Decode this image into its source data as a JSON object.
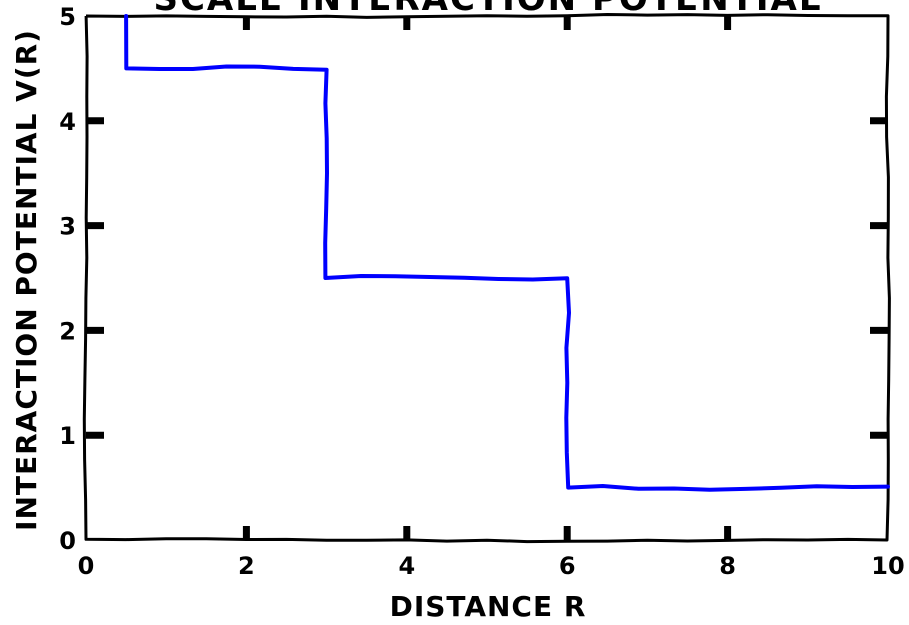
{
  "chart_data": {
    "type": "line",
    "title": "Scale Interaction Potential",
    "xlabel": "Distance r",
    "ylabel": "Interaction Potential V(r)",
    "xlim": [
      0,
      10
    ],
    "ylim": [
      0,
      5
    ],
    "xticks": [
      0,
      2,
      4,
      6,
      8,
      10
    ],
    "xtick_labels": [
      "0",
      "2",
      "4",
      "6",
      "8",
      "10"
    ],
    "yticks": [
      0,
      1,
      2,
      3,
      4,
      5
    ],
    "ytick_labels": [
      "0",
      "1",
      "2",
      "3",
      "4",
      "5"
    ],
    "grid": false,
    "style": "xkcd",
    "series": [
      {
        "color": "#0000ff",
        "x": [
          0.5,
          0.5,
          3.0,
          3.0,
          6.0,
          6.0,
          10.0
        ],
        "y": [
          5.0,
          4.5,
          4.5,
          2.5,
          2.5,
          0.5,
          0.5
        ]
      }
    ]
  }
}
